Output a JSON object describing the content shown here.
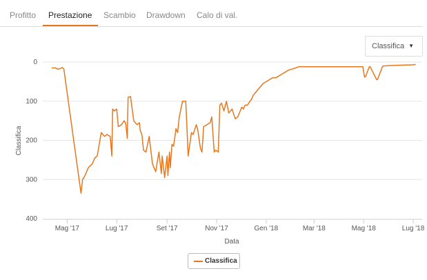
{
  "tabs": [
    {
      "label": "Profitto",
      "active": false
    },
    {
      "label": "Prestazione",
      "active": true
    },
    {
      "label": "Scambio",
      "active": false
    },
    {
      "label": "Drawdown",
      "active": false
    },
    {
      "label": "Calo di val.",
      "active": false
    }
  ],
  "selector": {
    "value": "Classifica",
    "icon": "caret-down-icon"
  },
  "colors": {
    "accent": "#e8761c",
    "series": "#e8761c",
    "grid": "#e6e6e6"
  },
  "chart_data": {
    "type": "line",
    "xlabel": "Data",
    "ylabel": "Classifica",
    "ylim": [
      400,
      0
    ],
    "y_inverted": true,
    "yticks": [
      0,
      100,
      200,
      300,
      400
    ],
    "xticks": [
      "Mag '17",
      "Lug '17",
      "Set '17",
      "Nov '17",
      "Gen '18",
      "Mar '18",
      "Mag '18",
      "Lug '18"
    ],
    "xtick_dates": [
      "2017-05-01",
      "2017-07-01",
      "2017-09-01",
      "2017-11-01",
      "2018-01-01",
      "2018-03-01",
      "2018-05-01",
      "2018-07-01"
    ],
    "grid": true,
    "legend_position": "bottom-center",
    "series": [
      {
        "name": "Classifica",
        "x": [
          "2017-04-12",
          "2017-04-17",
          "2017-04-19",
          "2017-04-22",
          "2017-04-25",
          "2017-04-27",
          "2017-05-18",
          "2017-05-20",
          "2017-05-23",
          "2017-05-27",
          "2017-06-01",
          "2017-06-04",
          "2017-06-07",
          "2017-06-12",
          "2017-06-16",
          "2017-06-19",
          "2017-06-23",
          "2017-06-25",
          "2017-06-26",
          "2017-06-28",
          "2017-07-01",
          "2017-07-03",
          "2017-07-07",
          "2017-07-10",
          "2017-07-12",
          "2017-07-14",
          "2017-07-15",
          "2017-07-18",
          "2017-07-22",
          "2017-07-26",
          "2017-07-29",
          "2017-07-30",
          "2017-08-01",
          "2017-08-03",
          "2017-08-06",
          "2017-08-10",
          "2017-08-14",
          "2017-08-18",
          "2017-08-22",
          "2017-08-25",
          "2017-08-26",
          "2017-08-29",
          "2017-09-01",
          "2017-09-02",
          "2017-09-04",
          "2017-09-05",
          "2017-09-07",
          "2017-09-09",
          "2017-09-11",
          "2017-09-12",
          "2017-09-14",
          "2017-09-16",
          "2017-09-20",
          "2017-09-24",
          "2017-09-27",
          "2017-10-01",
          "2017-10-03",
          "2017-10-07",
          "2017-10-09",
          "2017-10-12",
          "2017-10-14",
          "2017-10-16",
          "2017-10-20",
          "2017-10-24",
          "2017-10-26",
          "2017-10-29",
          "2017-10-31",
          "2017-11-03",
          "2017-11-05",
          "2017-11-07",
          "2017-11-10",
          "2017-11-13",
          "2017-11-16",
          "2017-11-20",
          "2017-11-24",
          "2017-11-27",
          "2017-11-30",
          "2017-12-02",
          "2017-12-04",
          "2017-12-06",
          "2017-12-09",
          "2017-12-12",
          "2017-12-14",
          "2017-12-16",
          "2017-12-20",
          "2017-12-24",
          "2017-12-28",
          "2018-01-01",
          "2018-01-05",
          "2018-01-09",
          "2018-01-13",
          "2018-01-17",
          "2018-01-21",
          "2018-01-25",
          "2018-01-29",
          "2018-02-02",
          "2018-02-06",
          "2018-02-10",
          "2018-02-12",
          "2018-02-14",
          "2018-02-16",
          "2018-02-20",
          "2018-02-24",
          "2018-03-01",
          "2018-03-05",
          "2018-03-09",
          "2018-03-13",
          "2018-03-20",
          "2018-03-31",
          "2018-04-15",
          "2018-04-30",
          "2018-05-02",
          "2018-05-03",
          "2018-05-08",
          "2018-05-09",
          "2018-05-17",
          "2018-05-18",
          "2018-05-24",
          "2018-05-25",
          "2018-06-01",
          "2018-06-15",
          "2018-07-01",
          "2018-07-04"
        ],
        "values": [
          15,
          15,
          18,
          17,
          14,
          18,
          335,
          300,
          290,
          270,
          260,
          245,
          240,
          180,
          190,
          185,
          190,
          240,
          120,
          125,
          120,
          165,
          160,
          150,
          155,
          195,
          90,
          88,
          150,
          160,
          155,
          175,
          185,
          225,
          230,
          190,
          260,
          280,
          230,
          285,
          240,
          295,
          240,
          290,
          230,
          270,
          210,
          215,
          185,
          170,
          180,
          140,
          100,
          100,
          240,
          180,
          185,
          160,
          175,
          220,
          230,
          165,
          160,
          155,
          140,
          230,
          225,
          230,
          110,
          105,
          125,
          100,
          130,
          120,
          145,
          140,
          125,
          115,
          120,
          110,
          110,
          100,
          95,
          85,
          75,
          65,
          55,
          50,
          45,
          40,
          40,
          35,
          30,
          25,
          20,
          18,
          15,
          12,
          12,
          12,
          12,
          12,
          12,
          12,
          12,
          12,
          12,
          12,
          12,
          12,
          12,
          38,
          38,
          12,
          12,
          45,
          45,
          12,
          10,
          9,
          8,
          7,
          6
        ]
      }
    ]
  }
}
